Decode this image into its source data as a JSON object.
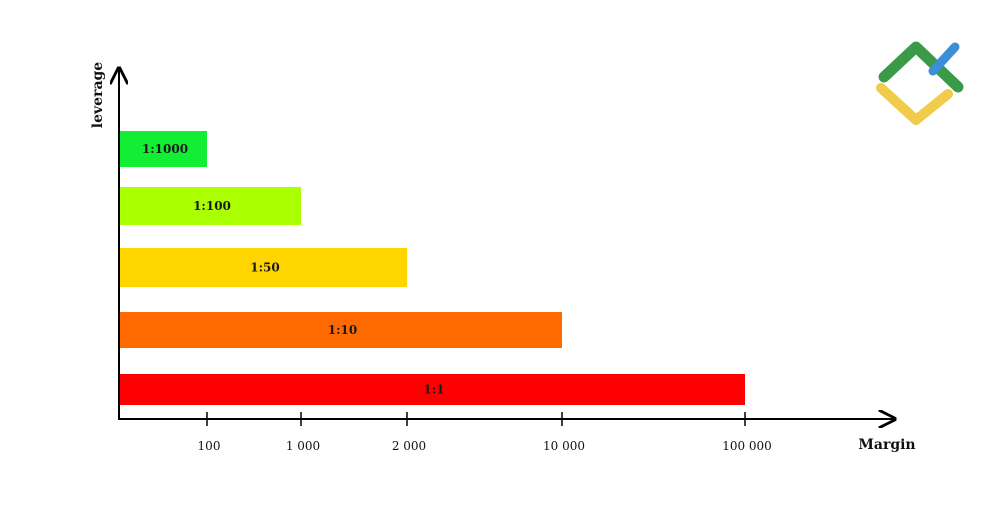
{
  "chart_data": {
    "type": "bar",
    "orientation": "horizontal",
    "categories": [
      "1:1000",
      "1:100",
      "1:50",
      "1:10",
      "1:1"
    ],
    "values": [
      100,
      1000,
      2000,
      10000,
      100000
    ],
    "colors": [
      "#11ee33",
      "#aaff00",
      "#ffd500",
      "#ff6a00",
      "#ff0000"
    ],
    "xlabel": "Margin",
    "ylabel": "leverage",
    "x_ticks": [
      {
        "value": 100,
        "label": "100"
      },
      {
        "value": 1000,
        "label": "1 000"
      },
      {
        "value": 2000,
        "label": "2 000"
      },
      {
        "value": 10000,
        "label": "10 000"
      },
      {
        "value": 100000,
        "label": "100 000"
      }
    ],
    "grid": false,
    "legend": "none"
  },
  "logo": {
    "icon": "brand-logo-icon",
    "colors": {
      "green": "#3a9a48",
      "blue": "#3b8fd6",
      "yellow": "#f0cc4a"
    }
  }
}
